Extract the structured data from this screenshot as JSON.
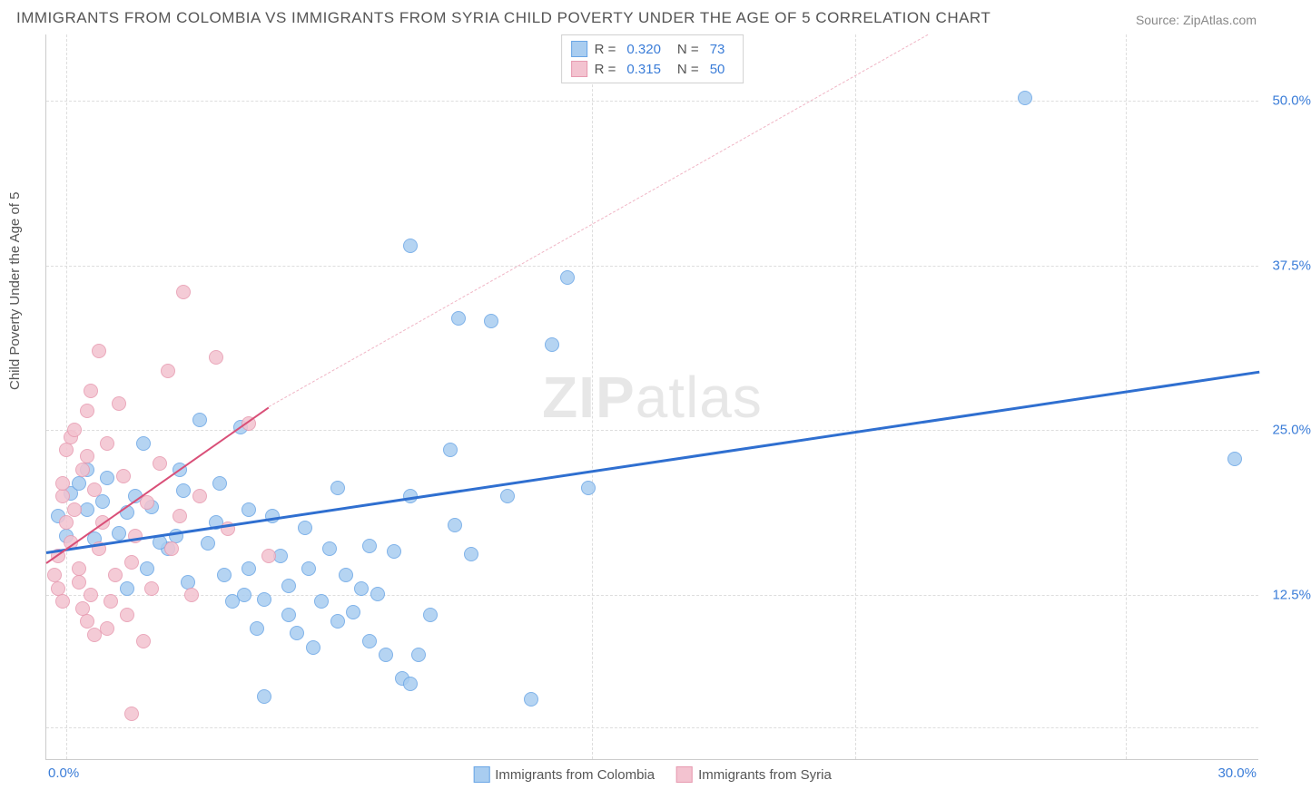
{
  "title": "IMMIGRANTS FROM COLOMBIA VS IMMIGRANTS FROM SYRIA CHILD POVERTY UNDER THE AGE OF 5 CORRELATION CHART",
  "source_label": "Source: ",
  "source_value": "ZipAtlas.com",
  "ylabel": "Child Poverty Under the Age of 5",
  "watermark_bold": "ZIP",
  "watermark_light": "atlas",
  "chart": {
    "type": "scatter",
    "xlim": [
      0,
      30
    ],
    "ylim": [
      0,
      55
    ],
    "background_color": "#ffffff",
    "grid_color": "#dddddd",
    "axis_color": "#cccccc",
    "tick_color": "#3b7dd8",
    "label_color": "#555555",
    "tick_fontsize": 15,
    "label_fontsize": 15,
    "title_fontsize": 17,
    "yticks": [
      {
        "v": 12.5,
        "label": "12.5%"
      },
      {
        "v": 25.0,
        "label": "25.0%"
      },
      {
        "v": 37.5,
        "label": "37.5%"
      },
      {
        "v": 50.0,
        "label": "50.0%"
      }
    ],
    "ygrid_extra": [
      2.5
    ],
    "xticks": [
      {
        "v": 0.0,
        "label": "0.0%",
        "align": "left"
      },
      {
        "v": 30.0,
        "label": "30.0%",
        "align": "right"
      }
    ],
    "xgrid": [
      0.5,
      13.5,
      20.0,
      26.7
    ],
    "marker_radius": 8,
    "marker_stroke": 1.5,
    "marker_fill_opacity": 0.28,
    "series": [
      {
        "name": "Immigrants from Colombia",
        "color_stroke": "#6aa6e6",
        "color_fill": "#a9cdf0",
        "R": "0.320",
        "N": "73",
        "trend": {
          "x1": 0,
          "y1": 15.8,
          "x2": 30,
          "y2": 29.5,
          "width": 3,
          "color": "#2f6fd0",
          "style": "solid"
        },
        "points": [
          {
            "x": 29.4,
            "y": 22.8
          },
          {
            "x": 24.2,
            "y": 50.2
          },
          {
            "x": 12.9,
            "y": 36.6
          },
          {
            "x": 11.0,
            "y": 33.3
          },
          {
            "x": 10.2,
            "y": 33.5
          },
          {
            "x": 9.0,
            "y": 39.0
          },
          {
            "x": 12.5,
            "y": 31.5
          },
          {
            "x": 11.4,
            "y": 20.0
          },
          {
            "x": 10.0,
            "y": 23.5
          },
          {
            "x": 9.0,
            "y": 20.0
          },
          {
            "x": 8.6,
            "y": 15.8
          },
          {
            "x": 10.5,
            "y": 15.6
          },
          {
            "x": 10.1,
            "y": 17.8
          },
          {
            "x": 12.0,
            "y": 4.6
          },
          {
            "x": 13.4,
            "y": 20.6
          },
          {
            "x": 0.6,
            "y": 20.2
          },
          {
            "x": 1.0,
            "y": 19.0
          },
          {
            "x": 1.0,
            "y": 22.0
          },
          {
            "x": 1.4,
            "y": 19.6
          },
          {
            "x": 1.5,
            "y": 21.4
          },
          {
            "x": 1.8,
            "y": 17.2
          },
          {
            "x": 2.0,
            "y": 18.8
          },
          {
            "x": 2.2,
            "y": 20.0
          },
          {
            "x": 2.4,
            "y": 24.0
          },
          {
            "x": 2.6,
            "y": 19.2
          },
          {
            "x": 3.0,
            "y": 16.0
          },
          {
            "x": 3.2,
            "y": 17.0
          },
          {
            "x": 3.4,
            "y": 20.4
          },
          {
            "x": 3.8,
            "y": 25.8
          },
          {
            "x": 4.0,
            "y": 16.4
          },
          {
            "x": 4.2,
            "y": 18.0
          },
          {
            "x": 4.4,
            "y": 14.0
          },
          {
            "x": 4.6,
            "y": 12.0
          },
          {
            "x": 4.8,
            "y": 25.2
          },
          {
            "x": 5.0,
            "y": 19.0
          },
          {
            "x": 5.2,
            "y": 10.0
          },
          {
            "x": 5.4,
            "y": 12.2
          },
          {
            "x": 5.4,
            "y": 4.8
          },
          {
            "x": 5.8,
            "y": 15.5
          },
          {
            "x": 6.0,
            "y": 11.0
          },
          {
            "x": 6.0,
            "y": 13.2
          },
          {
            "x": 6.2,
            "y": 9.6
          },
          {
            "x": 6.4,
            "y": 17.6
          },
          {
            "x": 6.8,
            "y": 12.0
          },
          {
            "x": 7.0,
            "y": 16.0
          },
          {
            "x": 7.2,
            "y": 10.5
          },
          {
            "x": 7.2,
            "y": 20.6
          },
          {
            "x": 7.4,
            "y": 14.0
          },
          {
            "x": 7.6,
            "y": 11.2
          },
          {
            "x": 7.8,
            "y": 13.0
          },
          {
            "x": 8.0,
            "y": 9.0
          },
          {
            "x": 8.0,
            "y": 16.2
          },
          {
            "x": 8.2,
            "y": 12.6
          },
          {
            "x": 8.4,
            "y": 8.0
          },
          {
            "x": 8.8,
            "y": 6.2
          },
          {
            "x": 9.0,
            "y": 5.8
          },
          {
            "x": 9.2,
            "y": 8.0
          },
          {
            "x": 9.5,
            "y": 11.0
          },
          {
            "x": 1.2,
            "y": 16.8
          },
          {
            "x": 2.0,
            "y": 13.0
          },
          {
            "x": 2.5,
            "y": 14.5
          },
          {
            "x": 3.3,
            "y": 22.0
          },
          {
            "x": 3.5,
            "y": 13.5
          },
          {
            "x": 0.5,
            "y": 17.0
          },
          {
            "x": 0.8,
            "y": 21.0
          },
          {
            "x": 0.3,
            "y": 18.5
          },
          {
            "x": 2.8,
            "y": 16.5
          },
          {
            "x": 4.3,
            "y": 21.0
          },
          {
            "x": 5.0,
            "y": 14.5
          },
          {
            "x": 5.6,
            "y": 18.5
          },
          {
            "x": 6.5,
            "y": 14.5
          },
          {
            "x": 6.6,
            "y": 8.5
          },
          {
            "x": 4.9,
            "y": 12.5
          }
        ]
      },
      {
        "name": "Immigrants from Syria",
        "color_stroke": "#e79ab0",
        "color_fill": "#f3c3d0",
        "R": "0.315",
        "N": "50",
        "trend": {
          "x1": 0,
          "y1": 15.0,
          "x2": 5.5,
          "y2": 26.8,
          "width": 2,
          "color": "#d94f78",
          "style": "solid"
        },
        "trend_ext": {
          "x1": 5.5,
          "y1": 26.8,
          "x2": 21.8,
          "y2": 55.0,
          "width": 1,
          "color": "#f0b5c5",
          "style": "dashed"
        },
        "points": [
          {
            "x": 0.2,
            "y": 14.0
          },
          {
            "x": 0.3,
            "y": 13.0
          },
          {
            "x": 0.3,
            "y": 15.5
          },
          {
            "x": 0.4,
            "y": 12.0
          },
          {
            "x": 0.4,
            "y": 20.0
          },
          {
            "x": 0.4,
            "y": 21.0
          },
          {
            "x": 0.5,
            "y": 18.0
          },
          {
            "x": 0.5,
            "y": 23.5
          },
          {
            "x": 0.6,
            "y": 24.5
          },
          {
            "x": 0.6,
            "y": 16.5
          },
          {
            "x": 0.7,
            "y": 19.0
          },
          {
            "x": 0.7,
            "y": 25.0
          },
          {
            "x": 0.8,
            "y": 13.5
          },
          {
            "x": 0.8,
            "y": 14.5
          },
          {
            "x": 0.9,
            "y": 11.5
          },
          {
            "x": 0.9,
            "y": 22.0
          },
          {
            "x": 1.0,
            "y": 10.5
          },
          {
            "x": 1.0,
            "y": 23.0
          },
          {
            "x": 1.0,
            "y": 26.5
          },
          {
            "x": 1.1,
            "y": 12.5
          },
          {
            "x": 1.1,
            "y": 28.0
          },
          {
            "x": 1.2,
            "y": 9.5
          },
          {
            "x": 1.2,
            "y": 20.5
          },
          {
            "x": 1.3,
            "y": 16.0
          },
          {
            "x": 1.3,
            "y": 31.0
          },
          {
            "x": 1.4,
            "y": 18.0
          },
          {
            "x": 1.5,
            "y": 10.0
          },
          {
            "x": 1.5,
            "y": 24.0
          },
          {
            "x": 1.6,
            "y": 12.0
          },
          {
            "x": 1.7,
            "y": 14.0
          },
          {
            "x": 1.8,
            "y": 27.0
          },
          {
            "x": 1.9,
            "y": 21.5
          },
          {
            "x": 2.0,
            "y": 11.0
          },
          {
            "x": 2.1,
            "y": 15.0
          },
          {
            "x": 2.1,
            "y": 3.5
          },
          {
            "x": 2.2,
            "y": 17.0
          },
          {
            "x": 2.4,
            "y": 9.0
          },
          {
            "x": 2.5,
            "y": 19.5
          },
          {
            "x": 2.6,
            "y": 13.0
          },
          {
            "x": 2.8,
            "y": 22.5
          },
          {
            "x": 3.0,
            "y": 29.5
          },
          {
            "x": 3.1,
            "y": 16.0
          },
          {
            "x": 3.3,
            "y": 18.5
          },
          {
            "x": 3.4,
            "y": 35.5
          },
          {
            "x": 3.6,
            "y": 12.5
          },
          {
            "x": 3.8,
            "y": 20.0
          },
          {
            "x": 4.2,
            "y": 30.5
          },
          {
            "x": 4.5,
            "y": 17.5
          },
          {
            "x": 5.0,
            "y": 25.5
          },
          {
            "x": 5.5,
            "y": 15.5
          }
        ]
      }
    ]
  },
  "legend_top": {
    "r_label": "R =",
    "n_label": "N ="
  }
}
